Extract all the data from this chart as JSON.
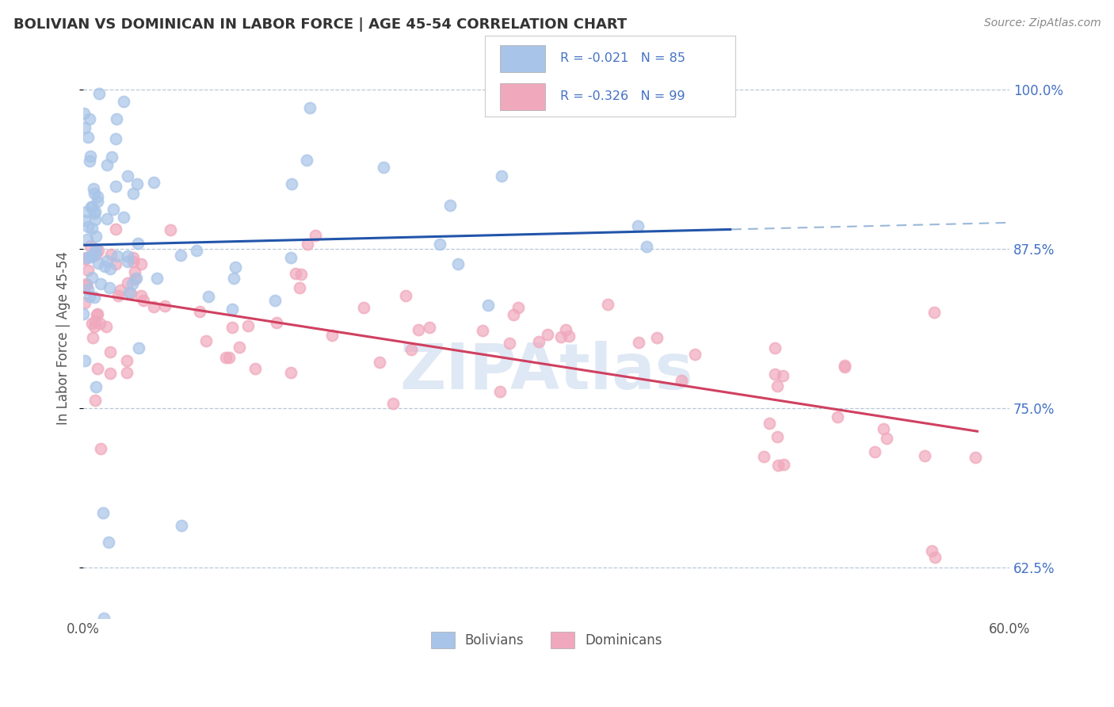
{
  "title": "BOLIVIAN VS DOMINICAN IN LABOR FORCE | AGE 45-54 CORRELATION CHART",
  "source_text": "Source: ZipAtlas.com",
  "ylabel": "In Labor Force | Age 45-54",
  "xlim": [
    0.0,
    0.6
  ],
  "ylim": [
    0.585,
    1.025
  ],
  "y_ticks": [
    0.625,
    0.75,
    0.875,
    1.0
  ],
  "y_tick_labels": [
    "62.5%",
    "75.0%",
    "87.5%",
    "100.0%"
  ],
  "bolivian_R": -0.021,
  "bolivian_N": 85,
  "dominican_R": -0.326,
  "dominican_N": 99,
  "bolivian_dot_color": "#a8c4e8",
  "dominican_dot_color": "#f0a8bc",
  "bolivian_line_color": "#2255aa",
  "dominican_line_color": "#d04060",
  "bolivian_line_dash": "#9ab8d8",
  "background_color": "#ffffff",
  "grid_color": "#b8c8d8",
  "watermark_color": "#c0d4ec",
  "title_color": "#333333",
  "source_color": "#888888",
  "tick_color": "#4472c4",
  "legend_text_color": "#4472c4",
  "n_color": "#333333"
}
